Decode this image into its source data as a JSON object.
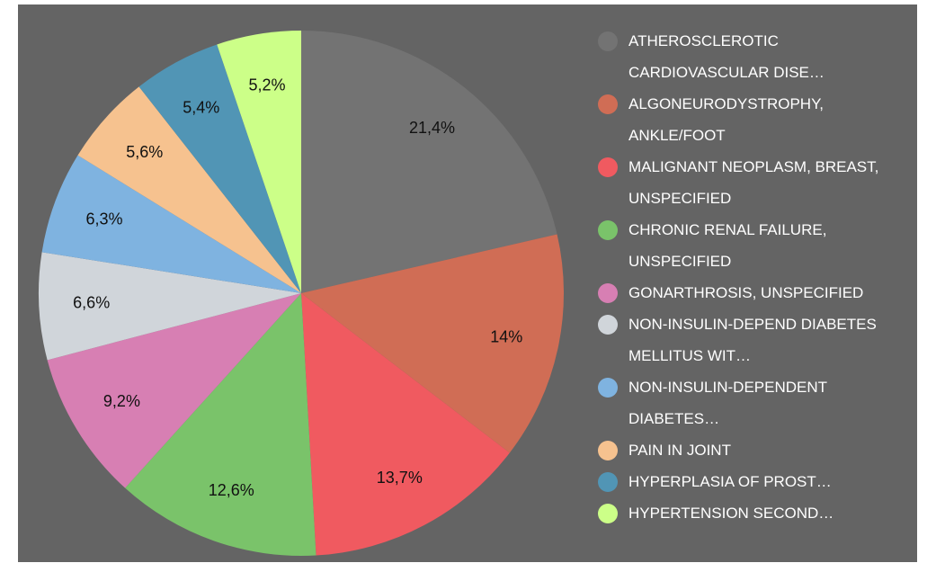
{
  "chart_data": {
    "type": "pie",
    "categories": [
      "ATHEROSCLEROTIC CARDIOVASCULAR DISE…",
      "ALGONEURODYSTROPHY, ANKLE/FOOT",
      "MALIGNANT NEOPLASM, BREAST, UNSPECIFIED",
      "CHRONIC RENAL FAILURE, UNSPECIFIED",
      "GONARTHROSIS, UNSPECIFIED",
      "NON-INSULIN-DEPEND DIABETES MELLITUS WIT…",
      "NON-INSULIN-DEPENDENT DIABETES…",
      "PAIN IN JOINT",
      "HYPERPLASIA OF PROST…",
      "HYPERTENSION SECOND…"
    ],
    "values": [
      21.4,
      14,
      13.7,
      12.6,
      9.2,
      6.6,
      6.3,
      5.6,
      5.4,
      5.2
    ],
    "value_labels": [
      "21,4%",
      "14%",
      "13,7%",
      "12,6%",
      "9,2%",
      "6,6%",
      "6,3%",
      "5,6%",
      "5,4%",
      "5,2%"
    ],
    "colors": [
      "#737373",
      "#d06d55",
      "#f05a60",
      "#7ac36a",
      "#d77fb3",
      "#d0d5da",
      "#7fb3e0",
      "#f6c28f",
      "#5195b5",
      "#ccff88"
    ],
    "legend": "right"
  }
}
